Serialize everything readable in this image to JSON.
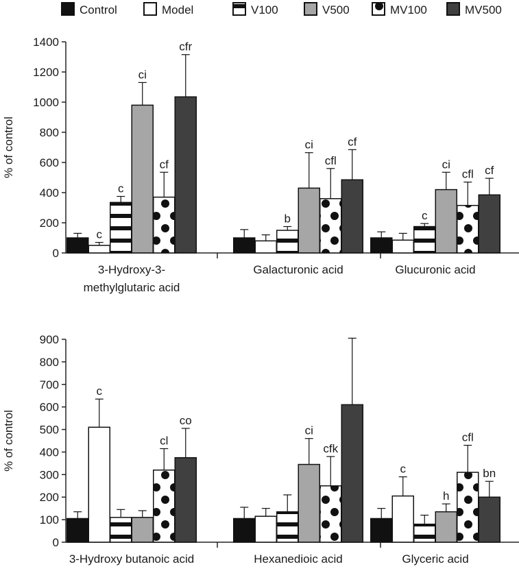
{
  "legend": {
    "items": [
      {
        "name": "Control",
        "fill": "#111111",
        "pattern": "solid"
      },
      {
        "name": "Model",
        "fill": "#ffffff",
        "pattern": "empty"
      },
      {
        "name": "V100",
        "fill": "#ffffff",
        "pattern": "hstripes"
      },
      {
        "name": "V500",
        "fill": "#a6a6a6",
        "pattern": "solid"
      },
      {
        "name": "MV100",
        "fill": "#ffffff",
        "pattern": "dots"
      },
      {
        "name": "MV500",
        "fill": "#404040",
        "pattern": "solid"
      }
    ]
  },
  "chart_data": [
    {
      "type": "bar",
      "title": "",
      "xlabel": "",
      "ylabel": "% of control",
      "ylim": [
        0,
        1400
      ],
      "yticks": [
        0,
        200,
        400,
        600,
        800,
        1000,
        1200,
        1400
      ],
      "categories": [
        [
          "3-Hydroxy-3-",
          "methylglutaric acid"
        ],
        [
          "Galacturonic acid"
        ],
        [
          "Glucuronic acid"
        ]
      ],
      "series": [
        {
          "name": "Control",
          "values": [
            100,
            100,
            100
          ],
          "errors": [
            30,
            55,
            40
          ],
          "labels": [
            "",
            "",
            ""
          ]
        },
        {
          "name": "Model",
          "values": [
            50,
            80,
            85
          ],
          "errors": [
            20,
            40,
            45
          ],
          "labels": [
            "c",
            "",
            ""
          ]
        },
        {
          "name": "V100",
          "values": [
            335,
            150,
            175
          ],
          "errors": [
            40,
            25,
            20
          ],
          "labels": [
            "c",
            "b",
            "c"
          ]
        },
        {
          "name": "V500",
          "values": [
            980,
            430,
            420
          ],
          "errors": [
            150,
            235,
            115
          ],
          "labels": [
            "ci",
            "ci",
            "ci"
          ]
        },
        {
          "name": "MV100",
          "values": [
            370,
            360,
            315
          ],
          "errors": [
            165,
            200,
            155
          ],
          "labels": [
            "cf",
            "cfl",
            "cfl"
          ]
        },
        {
          "name": "MV500",
          "values": [
            1035,
            485,
            385
          ],
          "errors": [
            280,
            200,
            110
          ],
          "labels": [
            "cfr",
            "cf",
            "cf"
          ]
        }
      ]
    },
    {
      "type": "bar",
      "title": "",
      "xlabel": "",
      "ylabel": "% of control",
      "ylim": [
        0,
        900
      ],
      "yticks": [
        0,
        100,
        200,
        300,
        400,
        500,
        600,
        700,
        800,
        900
      ],
      "categories": [
        [
          "3-Hydroxy butanoic acid"
        ],
        [
          "Hexanedioic acid"
        ],
        [
          "Glyceric acid"
        ]
      ],
      "series": [
        {
          "name": "Control",
          "values": [
            105,
            105,
            105
          ],
          "errors": [
            30,
            50,
            45
          ],
          "labels": [
            "",
            "",
            ""
          ]
        },
        {
          "name": "Model",
          "values": [
            510,
            115,
            205
          ],
          "errors": [
            125,
            35,
            85
          ],
          "labels": [
            "c",
            "",
            "c"
          ]
        },
        {
          "name": "V100",
          "values": [
            110,
            135,
            80
          ],
          "errors": [
            35,
            75,
            40
          ],
          "labels": [
            "",
            "",
            ""
          ]
        },
        {
          "name": "V500",
          "values": [
            110,
            345,
            135
          ],
          "errors": [
            30,
            115,
            35
          ],
          "labels": [
            "",
            "ci",
            "h"
          ]
        },
        {
          "name": "MV100",
          "values": [
            320,
            250,
            310
          ],
          "errors": [
            95,
            130,
            120
          ],
          "labels": [
            "cl",
            "cfk",
            "cfl"
          ]
        },
        {
          "name": "MV500",
          "values": [
            375,
            610,
            200
          ],
          "errors": [
            130,
            295,
            70
          ],
          "labels": [
            "co",
            "",
            "bn"
          ]
        }
      ]
    }
  ]
}
